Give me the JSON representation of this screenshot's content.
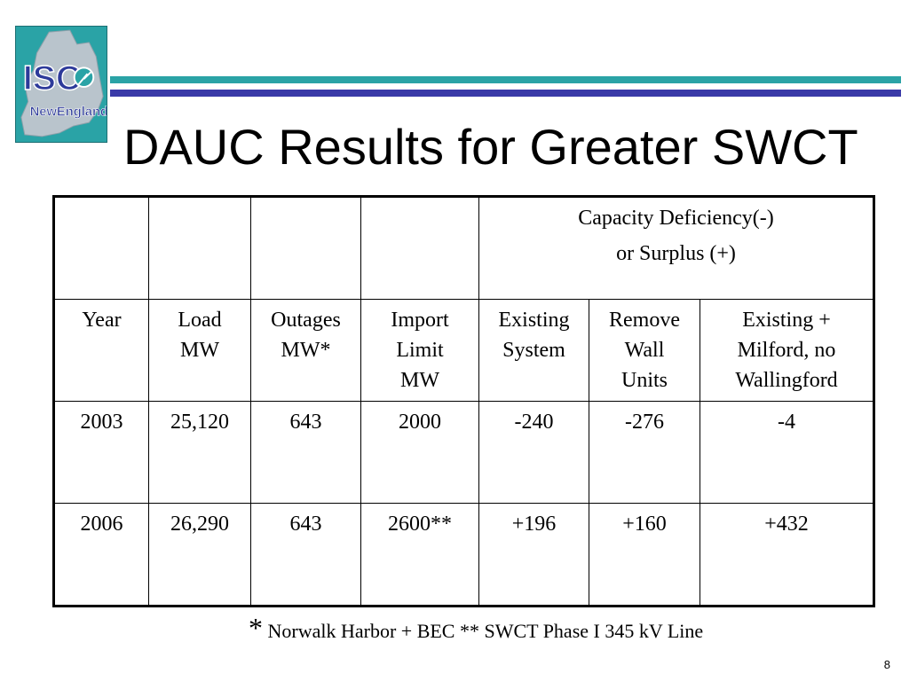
{
  "logo": {
    "line1": "ISO",
    "line2": "NewEngland",
    "icon": "new-england-map-icon"
  },
  "colors": {
    "teal": "#2aa3a6",
    "navy": "#3a3aa8",
    "logo_text": "#2d3a9a"
  },
  "title": "DAUC Results for Greater SWCT",
  "table": {
    "group_header": {
      "line1": "Capacity Deficiency(-)",
      "line2": "or Surplus (+)"
    },
    "columns": [
      [
        "Year"
      ],
      [
        "Load",
        "MW"
      ],
      [
        "Outages",
        "MW*"
      ],
      [
        "Import",
        "Limit",
        "MW"
      ],
      [
        "Existing",
        "System"
      ],
      [
        "Remove",
        "Wall",
        "Units"
      ],
      [
        "Existing +",
        "Milford, no",
        "Wallingford"
      ]
    ],
    "rows": [
      [
        "2003",
        "25,120",
        "643",
        "2000",
        "-240",
        "-276",
        "-4"
      ],
      [
        "2006",
        "26,290",
        "643",
        "2600**",
        "+196",
        "+160",
        "+432"
      ]
    ]
  },
  "footnote": {
    "star": "*",
    "text": "Norwalk Harbor + BEC  ** SWCT Phase I 345 kV Line"
  },
  "page_number": "8"
}
